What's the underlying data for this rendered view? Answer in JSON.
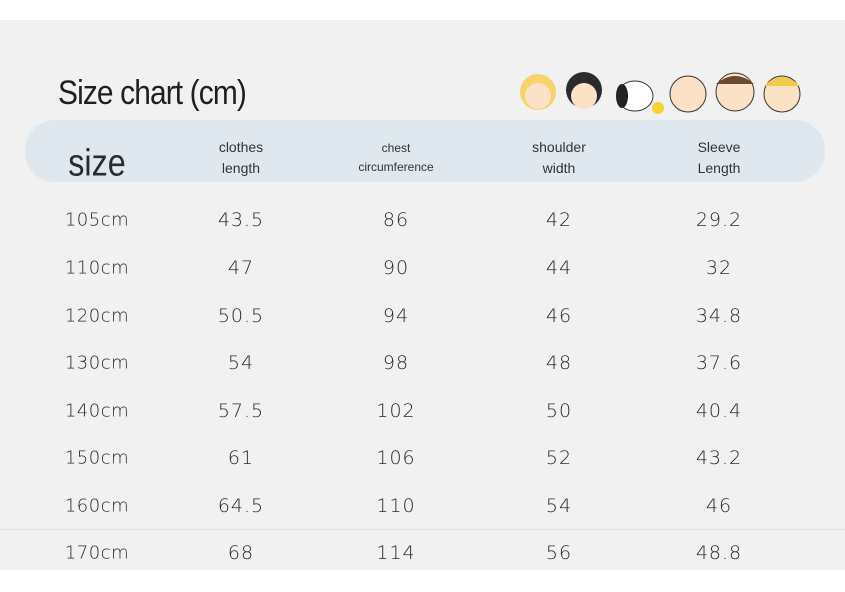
{
  "header": {
    "title": "Size chart (cm)"
  },
  "table": {
    "columns": [
      [
        "size"
      ],
      [
        "clothes",
        "length"
      ],
      [
        "chest",
        "circumference"
      ],
      [
        "shoulder",
        "width"
      ],
      [
        "Sleeve",
        "Length"
      ]
    ],
    "rows": [
      [
        "105cm",
        "43.5",
        "86",
        "42",
        "29.2"
      ],
      [
        "110cm",
        "47",
        "90",
        "44",
        "32"
      ],
      [
        "120cm",
        "50.5",
        "94",
        "46",
        "34.8"
      ],
      [
        "130cm",
        "54",
        "98",
        "48",
        "37.6"
      ],
      [
        "140cm",
        "57.5",
        "102",
        "50",
        "40.4"
      ],
      [
        "150cm",
        "61",
        "106",
        "52",
        "43.2"
      ],
      [
        "160cm",
        "64.5",
        "110",
        "54",
        "46"
      ],
      [
        "170cm",
        "68",
        "114",
        "56",
        "48.8"
      ]
    ]
  }
}
